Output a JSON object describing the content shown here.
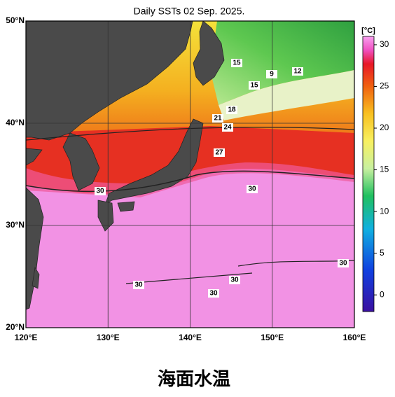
{
  "map": {
    "title": "Daily SSTs 02 Sep. 2025.",
    "xlim": [
      120,
      160
    ],
    "ylim": [
      20,
      50
    ],
    "xticks": [
      {
        "value": 120,
        "label": "120°E"
      },
      {
        "value": 130,
        "label": "130°E"
      },
      {
        "value": 140,
        "label": "140°E"
      },
      {
        "value": 150,
        "label": "150°E"
      },
      {
        "value": 160,
        "label": "160°E"
      }
    ],
    "yticks": [
      {
        "value": 20,
        "label": "20°N"
      },
      {
        "value": 30,
        "label": "30°N"
      },
      {
        "value": 40,
        "label": "40°N"
      },
      {
        "value": 50,
        "label": "50°N"
      }
    ],
    "contour_labels": [
      15,
      9,
      12,
      15,
      18,
      21,
      24,
      27,
      30,
      30,
      30,
      30,
      30,
      30
    ]
  },
  "colorbar": {
    "label": "[°C]",
    "range": [
      -2,
      31
    ],
    "ticks": [
      0,
      5,
      10,
      15,
      20,
      25,
      30
    ]
  },
  "caption": "海面水温"
}
